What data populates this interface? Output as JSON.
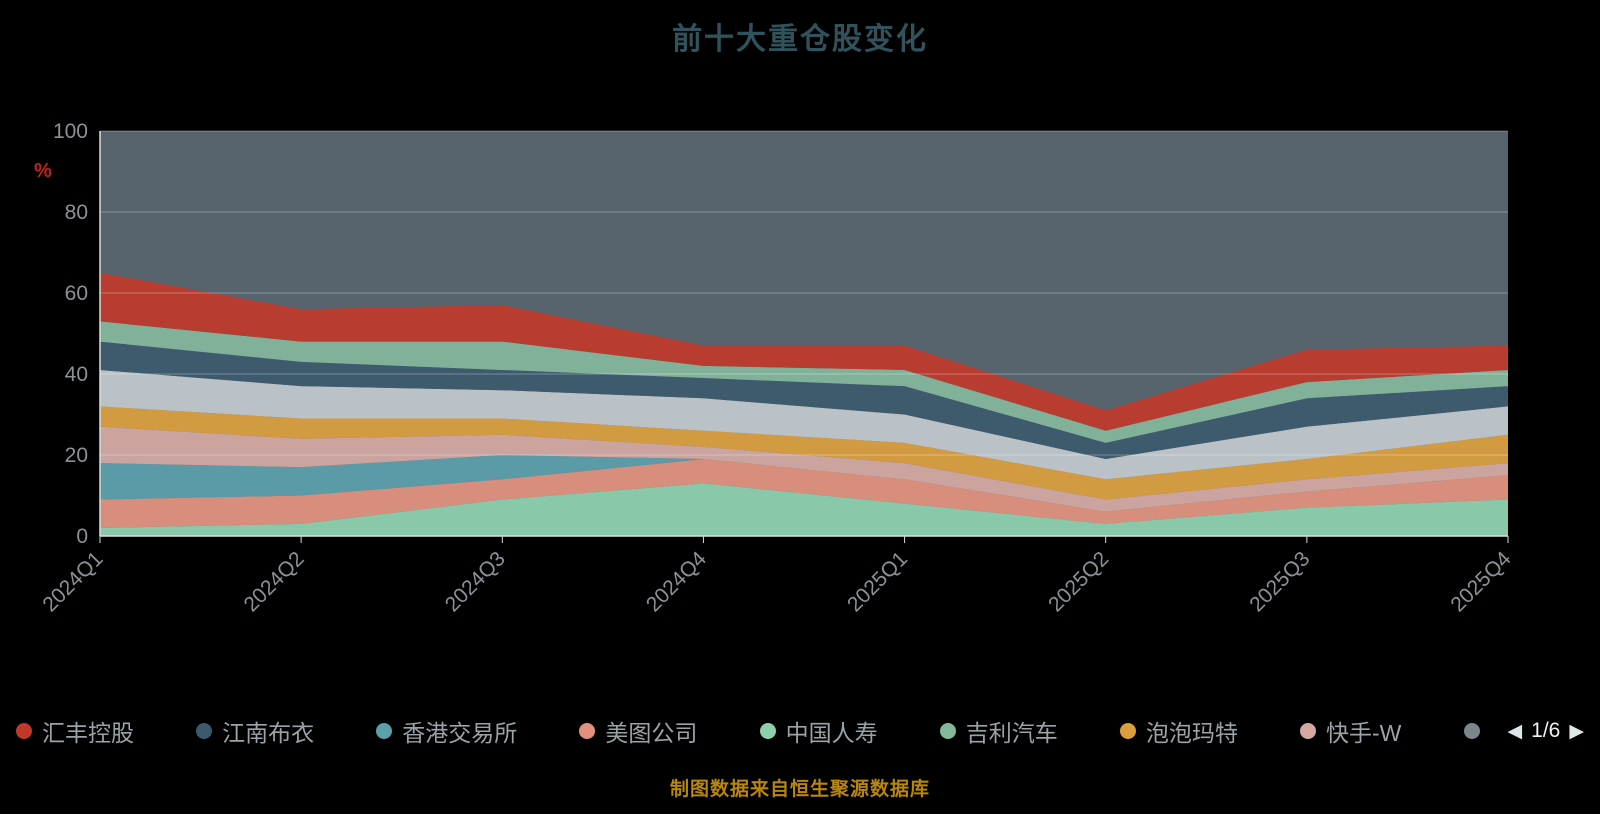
{
  "title": "前十大重仓股变化",
  "y_axis_unit": "%",
  "footer": "制图数据来自恒生聚源数据库",
  "pagination": {
    "current": "1/6",
    "prev_icon": "◀",
    "next_icon": "▶"
  },
  "colors": {
    "background": "#000000",
    "plot_background": "#57646d",
    "title": "#31525a",
    "axis_label": "#8a9298",
    "axis_line": "#d8dde0",
    "grid_line": "rgba(255,255,255,0.3)",
    "unit_label": "#c0241a",
    "footer": "#b8860b",
    "legend_label": "#9aa3a8"
  },
  "legend": {
    "items": [
      {
        "label": "汇丰控股",
        "color": "#c0392b"
      },
      {
        "label": "江南布衣",
        "color": "#3c5a6e"
      },
      {
        "label": "香港交易所",
        "color": "#5b9fab"
      },
      {
        "label": "美图公司",
        "color": "#e2917e"
      },
      {
        "label": "中国人寿",
        "color": "#8ed0ae"
      },
      {
        "label": "吉利汽车",
        "color": "#84b89c"
      },
      {
        "label": "泡泡玛特",
        "color": "#dd9f3d"
      },
      {
        "label": "快手-W",
        "color": "#d4a9a2"
      },
      {
        "label": "",
        "color": "#7d858d"
      }
    ]
  },
  "chart_data": {
    "type": "area",
    "stacked": true,
    "title": "前十大重仓股变化",
    "xlabel": "",
    "ylabel": "%",
    "ylim": [
      0,
      100
    ],
    "y_ticks": [
      0,
      20,
      40,
      60,
      80,
      100
    ],
    "grid": true,
    "legend_position": "bottom",
    "categories": [
      "2024Q1",
      "2024Q2",
      "2024Q3",
      "2024Q4",
      "2025Q1",
      "2025Q2",
      "2025Q3",
      "2025Q4"
    ],
    "series": [
      {
        "name": "中国人寿",
        "color": "#8ed0ae",
        "values": [
          2,
          3,
          9,
          13,
          8,
          3,
          7,
          9
        ]
      },
      {
        "name": "美图公司",
        "color": "#e2917e",
        "values": [
          7,
          7,
          5,
          6,
          6,
          3,
          4,
          6
        ]
      },
      {
        "name": "香港交易所",
        "color": "#5b9fab",
        "values": [
          9,
          7,
          6,
          0,
          0,
          0,
          0,
          0
        ]
      },
      {
        "name": "快手-W",
        "color": "#d4a9a2",
        "values": [
          9,
          7,
          5,
          3,
          4,
          3,
          3,
          3
        ]
      },
      {
        "name": "泡泡玛特",
        "color": "#dd9f3d",
        "values": [
          5,
          5,
          4,
          4,
          5,
          5,
          5,
          7
        ]
      },
      {
        "name": "",
        "color": "#c3c9ce",
        "values": [
          9,
          8,
          7,
          8,
          7,
          5,
          8,
          7
        ]
      },
      {
        "name": "江南布衣",
        "color": "#3c5a6e",
        "values": [
          7,
          6,
          5,
          5,
          7,
          4,
          7,
          5
        ]
      },
      {
        "name": "吉利汽车",
        "color": "#84b89c",
        "values": [
          5,
          5,
          7,
          3,
          4,
          3,
          4,
          4
        ]
      },
      {
        "name": "汇丰控股",
        "color": "#c0392b",
        "values": [
          12,
          8,
          9,
          5,
          6,
          5,
          8,
          6
        ]
      }
    ],
    "totals_percent": [
      65,
      56,
      57,
      47,
      47,
      31,
      46,
      47
    ]
  }
}
